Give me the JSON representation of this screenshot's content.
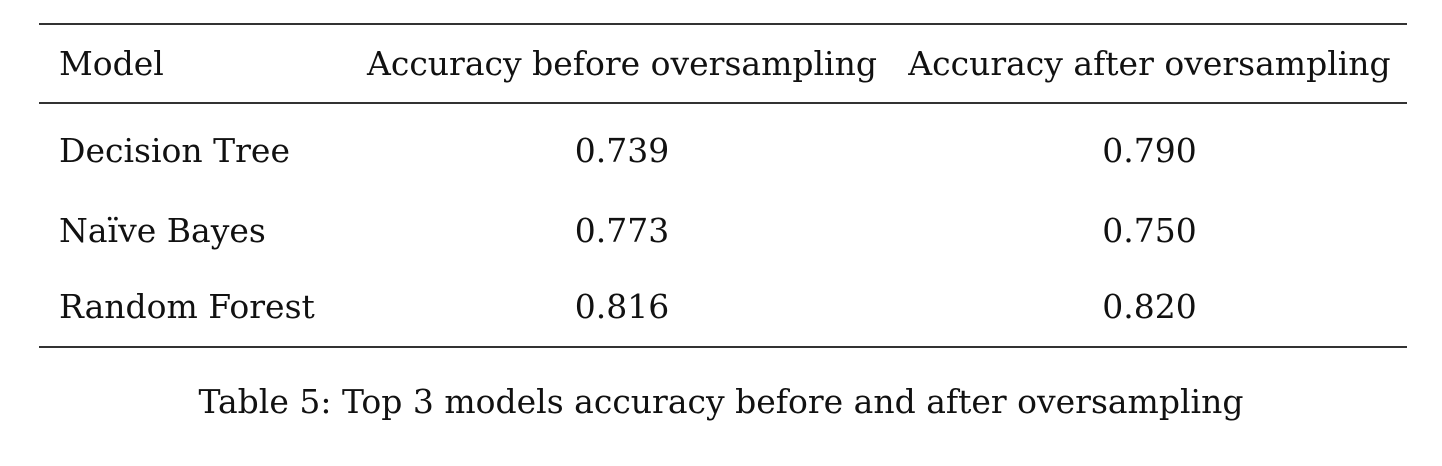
{
  "table": {
    "headers": [
      "Model",
      "Accuracy before oversampling",
      "Accuracy after oversampling"
    ],
    "rows": [
      [
        "Decision Tree",
        "0.739",
        "0.790"
      ],
      [
        "Naïve Bayes",
        "0.773",
        "0.750"
      ],
      [
        "Random Forest",
        "0.816",
        "0.820"
      ]
    ]
  },
  "caption": "Table 5: Top 3 models accuracy before and after oversampling"
}
